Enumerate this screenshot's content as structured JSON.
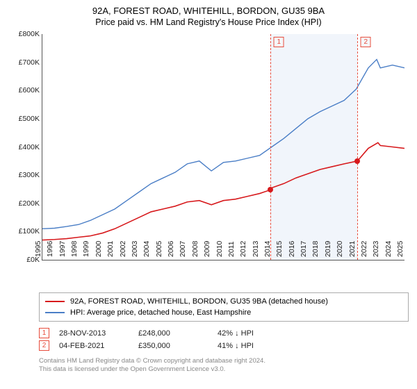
{
  "title": {
    "main": "92A, FOREST ROAD, WHITEHILL, BORDON, GU35 9BA",
    "sub": "Price paid vs. HM Land Registry's House Price Index (HPI)"
  },
  "chart": {
    "type": "line",
    "ylim": [
      0,
      800
    ],
    "ytick_step": 100,
    "y_prefix": "£",
    "y_suffix": "K",
    "xlim": [
      1995,
      2025
    ],
    "xtick_step": 1,
    "background_color": "#ffffff",
    "band": {
      "from": 2013.9,
      "to": 2021.1,
      "color": "#f1f5fb"
    },
    "series": [
      {
        "name": "property",
        "color": "#d7191c",
        "width": 1.6,
        "legend": "92A, FOREST ROAD, WHITEHILL, BORDON, GU35 9BA (detached house)",
        "points": [
          [
            1995,
            70
          ],
          [
            1996,
            72
          ],
          [
            1997,
            75
          ],
          [
            1998,
            80
          ],
          [
            1999,
            85
          ],
          [
            2000,
            95
          ],
          [
            2001,
            110
          ],
          [
            2002,
            130
          ],
          [
            2003,
            150
          ],
          [
            2004,
            170
          ],
          [
            2005,
            180
          ],
          [
            2006,
            190
          ],
          [
            2007,
            205
          ],
          [
            2008,
            210
          ],
          [
            2009,
            195
          ],
          [
            2010,
            210
          ],
          [
            2011,
            215
          ],
          [
            2012,
            225
          ],
          [
            2013,
            235
          ],
          [
            2013.9,
            248
          ],
          [
            2014,
            255
          ],
          [
            2015,
            270
          ],
          [
            2016,
            290
          ],
          [
            2017,
            305
          ],
          [
            2018,
            320
          ],
          [
            2019,
            330
          ],
          [
            2020,
            340
          ],
          [
            2021.1,
            350
          ],
          [
            2022,
            395
          ],
          [
            2022.8,
            415
          ],
          [
            2023,
            405
          ],
          [
            2024,
            400
          ],
          [
            2025,
            395
          ]
        ]
      },
      {
        "name": "hpi",
        "color": "#4a7ec6",
        "width": 1.4,
        "legend": "HPI: Average price, detached house, East Hampshire",
        "points": [
          [
            1995,
            110
          ],
          [
            1996,
            112
          ],
          [
            1997,
            118
          ],
          [
            1998,
            125
          ],
          [
            1999,
            140
          ],
          [
            2000,
            160
          ],
          [
            2001,
            180
          ],
          [
            2002,
            210
          ],
          [
            2003,
            240
          ],
          [
            2004,
            270
          ],
          [
            2005,
            290
          ],
          [
            2006,
            310
          ],
          [
            2007,
            340
          ],
          [
            2008,
            350
          ],
          [
            2009,
            315
          ],
          [
            2010,
            345
          ],
          [
            2011,
            350
          ],
          [
            2012,
            360
          ],
          [
            2013,
            370
          ],
          [
            2014,
            400
          ],
          [
            2015,
            430
          ],
          [
            2016,
            465
          ],
          [
            2017,
            500
          ],
          [
            2018,
            525
          ],
          [
            2019,
            545
          ],
          [
            2020,
            565
          ],
          [
            2021,
            605
          ],
          [
            2022,
            680
          ],
          [
            2022.7,
            710
          ],
          [
            2023,
            680
          ],
          [
            2024,
            690
          ],
          [
            2025,
            680
          ]
        ]
      }
    ],
    "markers": [
      {
        "n": "1",
        "x": 2013.9,
        "y": 248,
        "color": "#d7191c"
      },
      {
        "n": "2",
        "x": 2021.1,
        "y": 350,
        "color": "#d7191c"
      }
    ]
  },
  "events": [
    {
      "n": "1",
      "date": "28-NOV-2013",
      "price": "£248,000",
      "pct": "42% ↓ HPI"
    },
    {
      "n": "2",
      "date": "04-FEB-2021",
      "price": "£350,000",
      "pct": "41% ↓ HPI"
    }
  ],
  "footnote": {
    "l1": "Contains HM Land Registry data © Crown copyright and database right 2024.",
    "l2": "This data is licensed under the Open Government Licence v3.0."
  }
}
